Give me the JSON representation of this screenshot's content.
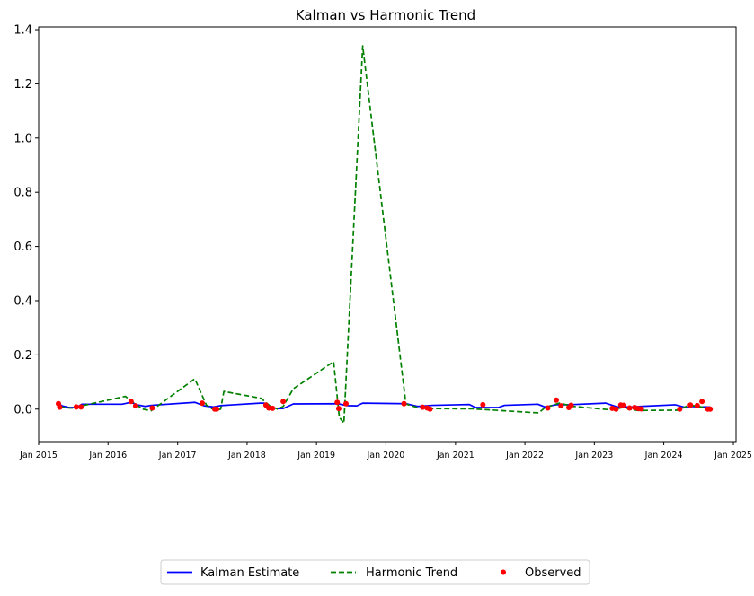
{
  "chart_data": {
    "type": "line",
    "title": "Kalman vs Harmonic Trend",
    "xlabel": "",
    "ylabel": "",
    "x_axis_type": "date",
    "xlim": [
      "2015-01-01",
      "2025-01-15"
    ],
    "ylim": [
      -0.12,
      1.41
    ],
    "y_ticks": [
      0.0,
      0.2,
      0.4,
      0.6,
      0.8,
      1.0,
      1.2,
      1.4
    ],
    "y_tick_labels": [
      "0.0",
      "0.2",
      "0.4",
      "0.6",
      "0.8",
      "1.0",
      "1.2",
      "1.4"
    ],
    "x_ticks": [
      "2015-01-01",
      "2016-01-01",
      "2017-01-01",
      "2018-01-01",
      "2019-01-01",
      "2020-01-01",
      "2021-01-01",
      "2022-01-01",
      "2023-01-01",
      "2024-01-01",
      "2025-01-01"
    ],
    "x_tick_labels": [
      "Jan 2015",
      "Jan 2016",
      "Jan 2017",
      "Jan 2018",
      "Jan 2019",
      "Jan 2020",
      "Jan 2021",
      "Jan 2022",
      "Jan 2023",
      "Jan 2024",
      "Jan 2025"
    ],
    "grid": false,
    "legend_position": "bottom-center",
    "colors": {
      "kalman": "#0000ff",
      "harmonic": "#008000",
      "observed": "#ff0000"
    },
    "series": [
      {
        "name": "Kalman Estimate",
        "style": "solid",
        "points": [
          [
            "2015-04-21",
            0.018
          ],
          [
            "2015-05-05",
            0.012
          ],
          [
            "2015-06-10",
            0.006
          ],
          [
            "2015-07-20",
            0.006
          ],
          [
            "2015-08-15",
            0.018
          ],
          [
            "2016-03-15",
            0.018
          ],
          [
            "2016-05-01",
            0.025
          ],
          [
            "2016-06-01",
            0.016
          ],
          [
            "2016-07-15",
            0.01
          ],
          [
            "2016-08-15",
            0.014
          ],
          [
            "2017-04-01",
            0.025
          ],
          [
            "2017-05-20",
            0.012
          ],
          [
            "2017-07-10",
            0.008
          ],
          [
            "2017-08-15",
            0.013
          ],
          [
            "2018-03-10",
            0.022
          ],
          [
            "2018-04-01",
            0.022
          ],
          [
            "2018-05-10",
            0.005
          ],
          [
            "2018-06-15",
            0.002
          ],
          [
            "2018-07-10",
            0.002
          ],
          [
            "2018-09-01",
            0.019
          ],
          [
            "2019-04-20",
            0.02
          ],
          [
            "2019-06-10",
            0.013
          ],
          [
            "2019-08-01",
            0.012
          ],
          [
            "2019-09-01",
            0.022
          ],
          [
            "2020-04-15",
            0.02
          ],
          [
            "2020-06-15",
            0.01
          ],
          [
            "2020-09-01",
            0.014
          ],
          [
            "2021-03-15",
            0.017
          ],
          [
            "2021-04-15",
            0.006
          ],
          [
            "2021-08-15",
            0.006
          ],
          [
            "2021-09-15",
            0.014
          ],
          [
            "2022-03-10",
            0.018
          ],
          [
            "2022-04-15",
            0.008
          ],
          [
            "2022-06-15",
            0.016
          ],
          [
            "2022-08-15",
            0.016
          ],
          [
            "2023-03-01",
            0.022
          ],
          [
            "2023-05-01",
            0.008
          ],
          [
            "2023-07-15",
            0.008
          ],
          [
            "2023-09-01",
            0.01
          ],
          [
            "2024-03-01",
            0.016
          ],
          [
            "2024-05-01",
            0.005
          ],
          [
            "2024-06-01",
            0.01
          ],
          [
            "2024-07-01",
            0.008
          ],
          [
            "2024-09-01",
            0.008
          ]
        ]
      },
      {
        "name": "Harmonic Trend",
        "style": "dashed",
        "points": [
          [
            "2015-04-21",
            0.008
          ],
          [
            "2015-06-15",
            0.004
          ],
          [
            "2015-07-25",
            0.004
          ],
          [
            "2015-08-15",
            0.012
          ],
          [
            "2016-04-01",
            0.047
          ],
          [
            "2016-05-01",
            0.03
          ],
          [
            "2016-07-01",
            0.0
          ],
          [
            "2016-08-15",
            -0.006
          ],
          [
            "2016-09-15",
            0.01
          ],
          [
            "2017-04-01",
            0.112
          ],
          [
            "2017-06-01",
            0.015
          ],
          [
            "2017-07-15",
            -0.005
          ],
          [
            "2017-08-15",
            0.0
          ],
          [
            "2017-09-01",
            0.065
          ],
          [
            "2018-03-15",
            0.04
          ],
          [
            "2018-05-01",
            0.012
          ],
          [
            "2018-06-10",
            0.0
          ],
          [
            "2018-07-10",
            0.01
          ],
          [
            "2018-09-01",
            0.075
          ],
          [
            "2019-04-01",
            0.175
          ],
          [
            "2019-05-01",
            -0.03
          ],
          [
            "2019-05-25",
            -0.052
          ],
          [
            "2019-09-01",
            1.34
          ],
          [
            "2020-04-15",
            0.019
          ],
          [
            "2020-06-15",
            0.006
          ],
          [
            "2020-08-15",
            0.002
          ],
          [
            "2021-04-01",
            0.001
          ],
          [
            "2022-03-15",
            -0.014
          ],
          [
            "2022-04-15",
            0.005
          ],
          [
            "2022-07-01",
            0.022
          ],
          [
            "2022-09-15",
            0.01
          ],
          [
            "2023-04-01",
            -0.003
          ],
          [
            "2023-06-01",
            0.006
          ],
          [
            "2023-08-15",
            -0.005
          ],
          [
            "2024-03-15",
            -0.004
          ],
          [
            "2024-05-15",
            0.015
          ],
          [
            "2024-07-01",
            0.01
          ],
          [
            "2024-09-01",
            0.002
          ]
        ]
      },
      {
        "name": "Observed",
        "style": "markers",
        "points": [
          [
            "2015-04-15",
            0.02
          ],
          [
            "2015-04-22",
            0.007
          ],
          [
            "2015-07-18",
            0.008
          ],
          [
            "2015-08-12",
            0.008
          ],
          [
            "2016-05-01",
            0.028
          ],
          [
            "2016-05-25",
            0.012
          ],
          [
            "2016-08-20",
            0.004
          ],
          [
            "2017-05-10",
            0.022
          ],
          [
            "2017-07-15",
            0.0
          ],
          [
            "2017-07-25",
            0.0
          ],
          [
            "2018-04-10",
            0.015
          ],
          [
            "2018-04-25",
            0.004
          ],
          [
            "2018-05-15",
            0.003
          ],
          [
            "2018-07-10",
            0.028
          ],
          [
            "2019-04-20",
            0.025
          ],
          [
            "2019-04-28",
            0.002
          ],
          [
            "2019-06-05",
            0.02
          ],
          [
            "2020-04-05",
            0.02
          ],
          [
            "2020-07-12",
            0.007
          ],
          [
            "2020-08-05",
            0.004
          ],
          [
            "2020-08-20",
            0.0
          ],
          [
            "2021-05-25",
            0.016
          ],
          [
            "2022-05-01",
            0.004
          ],
          [
            "2022-06-15",
            0.033
          ],
          [
            "2022-07-10",
            0.012
          ],
          [
            "2022-08-20",
            0.006
          ],
          [
            "2022-09-01",
            0.014
          ],
          [
            "2023-04-05",
            0.003
          ],
          [
            "2023-04-25",
            0.0
          ],
          [
            "2023-05-20",
            0.015
          ],
          [
            "2023-06-05",
            0.014
          ],
          [
            "2023-07-05",
            0.004
          ],
          [
            "2023-08-01",
            0.006
          ],
          [
            "2023-08-20",
            0.002
          ],
          [
            "2023-09-05",
            0.001
          ],
          [
            "2024-03-25",
            0.0
          ],
          [
            "2024-05-20",
            0.015
          ],
          [
            "2024-06-25",
            0.013
          ],
          [
            "2024-07-20",
            0.028
          ],
          [
            "2024-08-20",
            0.0
          ],
          [
            "2024-09-01",
            0.0
          ]
        ]
      }
    ],
    "legend": [
      {
        "label": "Kalman Estimate",
        "style": "solid"
      },
      {
        "label": "Harmonic Trend",
        "style": "dashed"
      },
      {
        "label": "Observed",
        "style": "markers"
      }
    ]
  }
}
